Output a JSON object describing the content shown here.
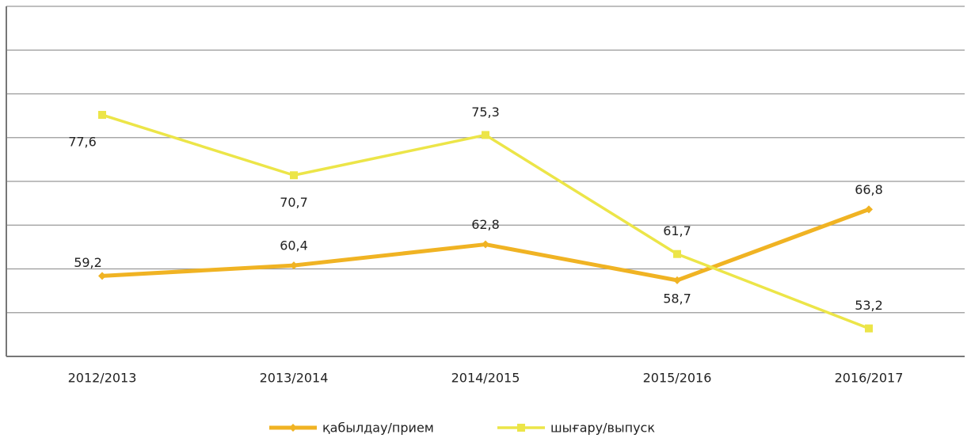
{
  "chart_data": {
    "type": "line",
    "categories": [
      "2012/2013",
      "2013/2014",
      "2014/2015",
      "2015/2016",
      "2016/2017"
    ],
    "series": [
      {
        "name": "қабылдау/прием",
        "color": "#f0b323",
        "values": [
          59.2,
          60.4,
          62.8,
          58.7,
          66.8
        ],
        "value_labels": [
          "59,2",
          "60,4",
          "62,8",
          "58,7",
          "66,8"
        ],
        "marker": "diamond"
      },
      {
        "name": "шығару/выпуск",
        "color": "#ece548",
        "values": [
          77.6,
          70.7,
          75.3,
          61.7,
          53.2
        ],
        "value_labels": [
          "77,6",
          "70,7",
          "75,3",
          "61,7",
          "53,2"
        ],
        "marker": "square"
      }
    ],
    "ylim": [
      50,
      90
    ],
    "yticks": [
      50,
      55,
      60,
      65,
      70,
      75,
      80,
      85,
      90
    ],
    "grid": true,
    "legend": "bottom"
  }
}
